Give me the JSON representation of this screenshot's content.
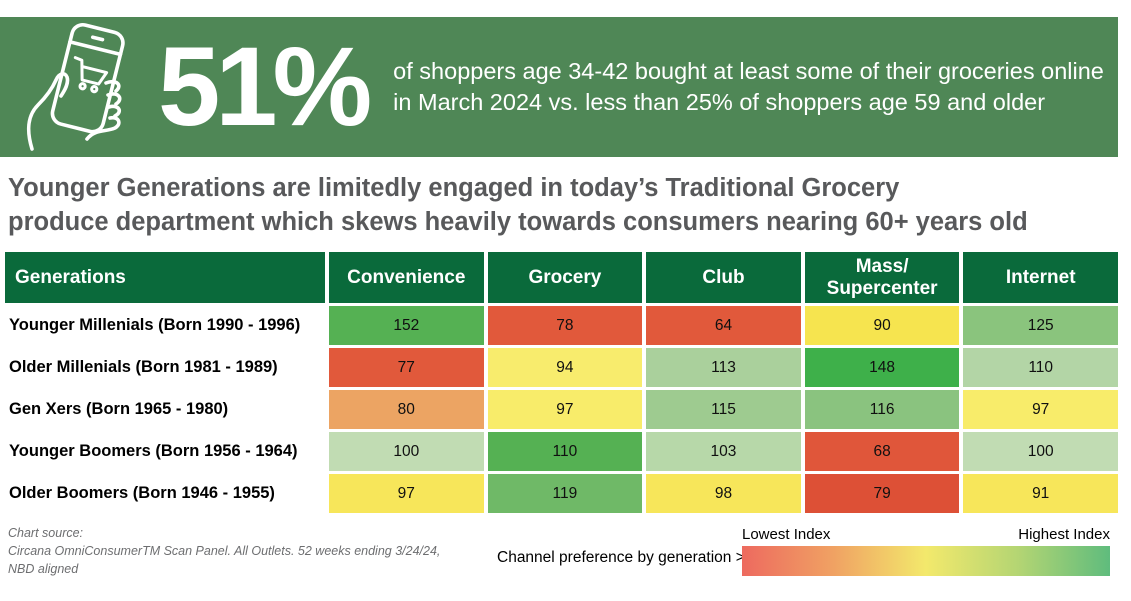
{
  "banner": {
    "stat": "51%",
    "description_line1": "of shoppers age 34-42 bought at least some of their groceries online",
    "description_line2": "in March 2024 vs. less than 25% of shoppers age 59 and older",
    "icon": "hand-holding-phone-with-shopping-cart-icon",
    "bg_color": "#4f8756"
  },
  "headline": {
    "line1": "Younger Generations are limitedly engaged in today’s Traditional Grocery",
    "line2": "produce department which skews heavily towards consumers nearing 60+ years old"
  },
  "chart_data": {
    "type": "heatmap",
    "title": "Channel preference by generation",
    "row_header": "Generations",
    "columns": [
      "Convenience",
      "Grocery",
      "Club",
      "Mass/\nSupercenter",
      "Internet"
    ],
    "rows": [
      {
        "label": "Younger Millenials (Born 1990 - 1996)",
        "values": [
          152,
          78,
          64,
          90,
          125
        ],
        "colors": [
          "#55b153",
          "#e1593b",
          "#e1593b",
          "#f6e44f",
          "#8ac47d"
        ]
      },
      {
        "label": "Older Millenials (Born 1981 - 1989)",
        "values": [
          77,
          94,
          113,
          148,
          110
        ],
        "colors": [
          "#e1593b",
          "#f8ec6d",
          "#aad09c",
          "#3eb04a",
          "#b3d5a6"
        ]
      },
      {
        "label": "Gen Xers (Born 1965 - 1980)",
        "values": [
          80,
          97,
          115,
          116,
          97
        ],
        "colors": [
          "#eca463",
          "#f8ec6a",
          "#9ecb90",
          "#8ac37f",
          "#f8ec6a"
        ]
      },
      {
        "label": "Younger Boomers (Born 1956 - 1964)",
        "values": [
          100,
          110,
          103,
          68,
          100
        ],
        "colors": [
          "#c1dcb3",
          "#55b153",
          "#b7d8a9",
          "#e0563a",
          "#c1dcb3"
        ]
      },
      {
        "label": "Older Boomers (Born 1946 - 1955)",
        "values": [
          97,
          119,
          98,
          79,
          91
        ],
        "colors": [
          "#f7e65a",
          "#6fb967",
          "#f7e65a",
          "#dd5036",
          "#f7e65a"
        ]
      }
    ],
    "header_bg": "#0a6a3b"
  },
  "footer": {
    "source_line1": "Chart source:",
    "source_line2": "Circana OmniConsumerTM Scan Panel. All Outlets. 52 weeks ending 3/24/24,",
    "source_line3": "NBD aligned",
    "legend_caption": "Channel preference by generation >",
    "legend": {
      "low_label": "Lowest Index",
      "high_label": "Highest Index",
      "gradient": [
        "#ed6a5f",
        "#f0a263",
        "#f3e96c",
        "#b4d573",
        "#5fbc7d"
      ]
    }
  }
}
